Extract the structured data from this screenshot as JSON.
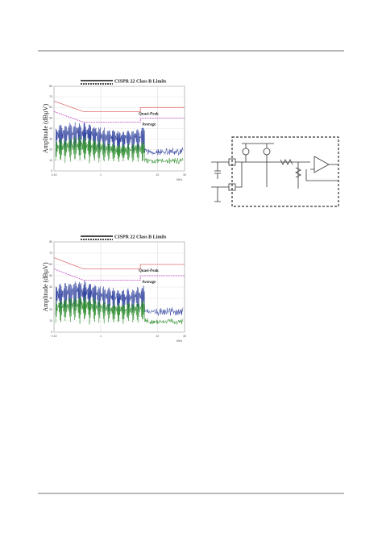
{
  "figures": [
    {
      "legend_title": "CISPR 22 Class B Limits",
      "y_label": "Amplitude (dBµV)",
      "x_unit": "MHz",
      "xscale": "log",
      "xlim": [
        0.15,
        30
      ],
      "ylim": [
        0,
        80
      ],
      "xticks": [
        0.15,
        1,
        10,
        30
      ],
      "yticks": [
        0,
        10,
        20,
        30,
        40,
        50,
        60,
        70,
        80
      ],
      "series": [
        {
          "name": "Quasi-Peak",
          "color": "#e07070",
          "x": [
            0.15,
            0.5,
            5,
            5,
            30
          ],
          "values": [
            66,
            56,
            56,
            60,
            60
          ]
        },
        {
          "name": "Average",
          "color": "#c040c0",
          "x": [
            0.15,
            0.5,
            5,
            5,
            30
          ],
          "values": [
            56,
            46,
            46,
            50,
            50
          ]
        }
      ]
    },
    {
      "legend_title": "CISPR 22 Class B Limits",
      "y_label": "Amplitude (dBµV)",
      "x_unit": "MHz",
      "xscale": "log",
      "xlim": [
        0.15,
        30
      ],
      "ylim": [
        0,
        80
      ],
      "xticks": [
        0.15,
        1,
        10,
        30
      ],
      "yticks": [
        0,
        10,
        20,
        30,
        40,
        50,
        60,
        70,
        80
      ],
      "series": [
        {
          "name": "Quasi-Peak",
          "color": "#e07070",
          "x": [
            0.15,
            0.5,
            5,
            5,
            30
          ],
          "values": [
            66,
            56,
            56,
            60,
            60
          ]
        },
        {
          "name": "Average",
          "color": "#c040c0",
          "x": [
            0.15,
            0.5,
            5,
            5,
            30
          ],
          "values": [
            56,
            46,
            46,
            50,
            50
          ]
        }
      ]
    }
  ]
}
